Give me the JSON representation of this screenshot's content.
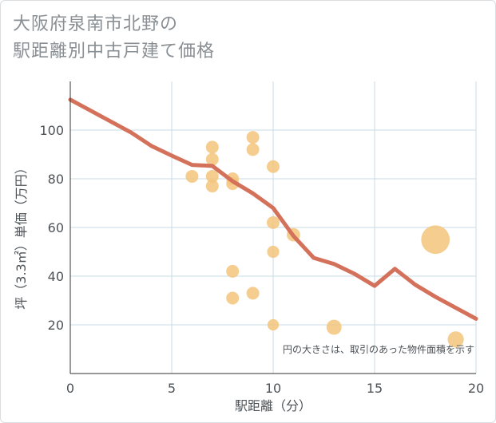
{
  "title": {
    "line1": "大阪府泉南市北野の",
    "line2": "駅距離別中古戸建て価格"
  },
  "colors": {
    "line": "#d4715a",
    "bubble": "#f3c47b",
    "grid": "#c9dbe6",
    "axis": "#333333"
  },
  "chart_data": {
    "type": "scatter",
    "title": "大阪府泉南市北野の駅距離別中古戸建て価格",
    "xlabel": "駅距離（分）",
    "ylabel": "坪（3.3㎡）単価（万円）",
    "xlim": [
      0,
      20
    ],
    "ylim": [
      0,
      120
    ],
    "x_ticks": [
      "0",
      "5",
      "10",
      "15",
      "20"
    ],
    "y_ticks": [
      "20",
      "40",
      "60",
      "80",
      "100"
    ],
    "x_tick_values": [
      0,
      5,
      10,
      15,
      20
    ],
    "y_tick_values": [
      20,
      40,
      60,
      80,
      100
    ],
    "note": "円の大きさは、取引のあった物件面積を示す",
    "scatter_points": [
      {
        "x": 6,
        "y": 81,
        "size": 1
      },
      {
        "x": 7,
        "y": 93,
        "size": 1
      },
      {
        "x": 7,
        "y": 88,
        "size": 1
      },
      {
        "x": 7,
        "y": 81,
        "size": 1
      },
      {
        "x": 7,
        "y": 77,
        "size": 1
      },
      {
        "x": 8,
        "y": 80,
        "size": 1
      },
      {
        "x": 8,
        "y": 78,
        "size": 1
      },
      {
        "x": 8,
        "y": 42,
        "size": 1
      },
      {
        "x": 8,
        "y": 31,
        "size": 1
      },
      {
        "x": 9,
        "y": 97,
        "size": 1
      },
      {
        "x": 9,
        "y": 92,
        "size": 1
      },
      {
        "x": 9,
        "y": 33,
        "size": 1
      },
      {
        "x": 10,
        "y": 85,
        "size": 1
      },
      {
        "x": 10,
        "y": 62,
        "size": 1
      },
      {
        "x": 10,
        "y": 50,
        "size": 0.9
      },
      {
        "x": 10,
        "y": 20,
        "size": 0.8
      },
      {
        "x": 11,
        "y": 57,
        "size": 1.1
      },
      {
        "x": 13,
        "y": 19,
        "size": 1.4
      },
      {
        "x": 18,
        "y": 55,
        "size": 5.0
      },
      {
        "x": 19,
        "y": 14,
        "size": 1.6
      }
    ],
    "trend_line": {
      "x": [
        0,
        1,
        2,
        3,
        4,
        5,
        6,
        7,
        8,
        9,
        10,
        11,
        12,
        13,
        14,
        15,
        16,
        17,
        18,
        19,
        20
      ],
      "y": [
        112.5,
        108,
        103.5,
        99,
        93.5,
        89.5,
        85.7,
        85.3,
        79,
        74,
        68,
        56.5,
        47.5,
        45,
        41,
        36,
        43,
        36.5,
        31.5,
        27,
        22.5
      ]
    }
  }
}
